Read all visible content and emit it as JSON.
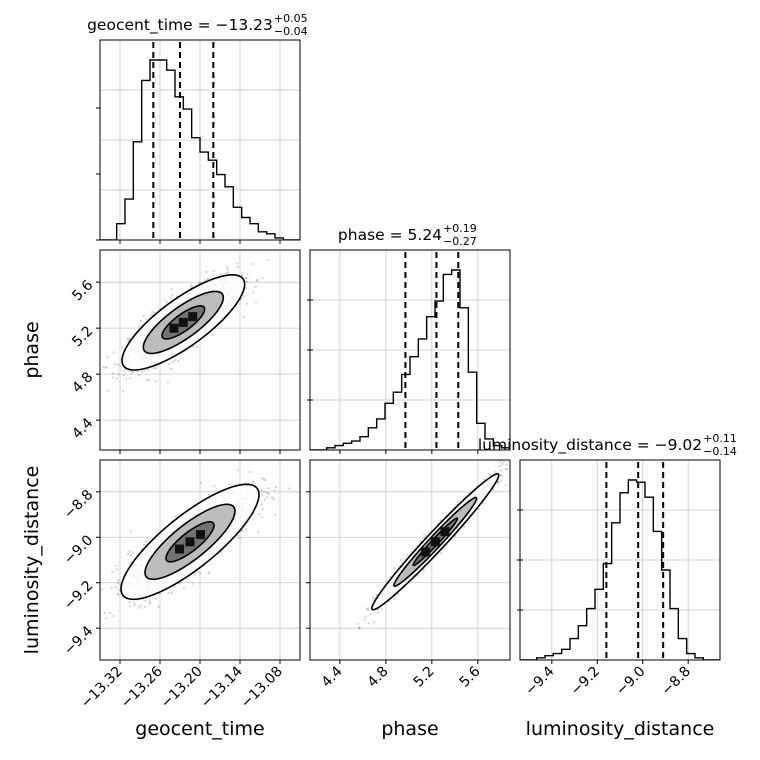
{
  "chart_data": {
    "type": "corner",
    "parameters": [
      "geocent_time",
      "phase",
      "luminosity_distance"
    ],
    "ranges": {
      "geocent_time": [
        -13.35,
        -13.05
      ],
      "phase": [
        4.14,
        5.88
      ],
      "luminosity_distance": [
        -9.54,
        -8.66
      ]
    },
    "ticks": {
      "geocent_time": [
        -13.32,
        -13.26,
        -13.2,
        -13.14,
        -13.08
      ],
      "phase": [
        4.4,
        4.8,
        5.2,
        5.6
      ],
      "luminosity_distance": [
        -9.4,
        -9.2,
        -9.0,
        -8.8
      ]
    },
    "tick_labels": {
      "geocent_time": [
        "−13.32",
        "−13.26",
        "−13.20",
        "−13.14",
        "−13.08"
      ],
      "phase": [
        "4.4",
        "4.8",
        "5.2",
        "5.6"
      ],
      "luminosity_distance": [
        "−9.4",
        "−9.2",
        "−9.0",
        "−8.8"
      ]
    },
    "titles": {
      "geocent_time": {
        "label": "geocent_time = −13.23",
        "plus": "+0.05",
        "minus": "−0.04"
      },
      "phase": {
        "label": "phase = 5.24",
        "plus": "+0.19",
        "minus": "−0.27"
      },
      "luminosity_distance": {
        "label": "luminosity_distance = −9.02",
        "plus": "+0.11",
        "minus": "−0.14"
      }
    },
    "quantiles": {
      "geocent_time": [
        -13.27,
        -13.23,
        -13.18
      ],
      "phase": [
        4.97,
        5.24,
        5.43
      ],
      "luminosity_distance": [
        -9.16,
        -9.02,
        -8.91
      ]
    },
    "histograms": {
      "geocent_time": [
        0,
        0,
        8,
        20,
        48,
        78,
        88,
        88,
        83,
        70,
        64,
        50,
        43,
        39,
        32,
        26,
        16,
        11,
        8,
        4,
        3,
        1,
        0,
        0
      ],
      "phase": [
        0,
        0,
        1,
        2,
        3,
        4,
        6,
        10,
        14,
        21,
        26,
        34,
        42,
        50,
        60,
        67,
        79,
        81,
        64,
        35,
        12,
        5,
        2,
        1
      ],
      "luminosity_distance": [
        0,
        0,
        1,
        2,
        3,
        5,
        10,
        16,
        24,
        33,
        45,
        64,
        78,
        84,
        83,
        76,
        60,
        42,
        24,
        10,
        3,
        1,
        0,
        0
      ]
    },
    "densities": {
      "phase_vs_geocent_time": {
        "corr": 0.8,
        "mean": [
          -13.225,
          5.25
        ],
        "sd": [
          0.04,
          0.18
        ]
      },
      "luminosity_distance_vs_geocent_time": {
        "corr": 0.82,
        "mean": [
          -13.215,
          -9.02
        ],
        "sd": [
          0.045,
          0.11
        ]
      },
      "luminosity_distance_vs_phase": {
        "corr": 0.98,
        "mean": [
          5.23,
          -9.02
        ],
        "sd": [
          0.24,
          0.13
        ]
      }
    },
    "grid": true,
    "contour_levels": 3
  }
}
